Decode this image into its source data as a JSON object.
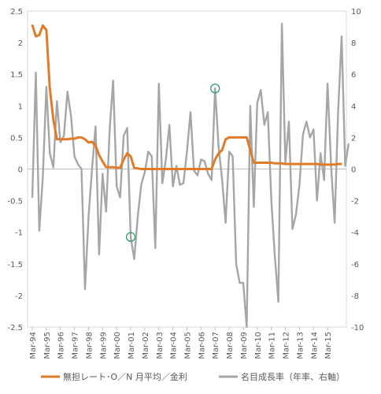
{
  "chart_data": {
    "type": "line",
    "title": "",
    "xlabel": "",
    "ylabel_left": "",
    "ylabel_right": "",
    "legend_position": "bottom",
    "grid": false,
    "y_left": {
      "min": -2.5,
      "max": 2.5,
      "step": 0.5,
      "tick_labels": [
        "2.5",
        "2",
        "1.5",
        "1",
        "0.5",
        "0",
        "-0.5",
        "-1",
        "-1.5",
        "-2",
        "-2.5"
      ]
    },
    "y_right": {
      "min": -10,
      "max": 10,
      "step": 2,
      "tick_labels": [
        "10",
        "8",
        "6",
        "4",
        "2",
        "0",
        "-2",
        "-4",
        "-6",
        "-8",
        "-10"
      ]
    },
    "x_tick_labels": [
      "Mar-94",
      "Mar-95",
      "Mar-96",
      "Mar-97",
      "Mar-98",
      "Mar-99",
      "Mar-00",
      "Mar-01",
      "Mar-02",
      "Mar-03",
      "Mar-04",
      "Mar-05",
      "Mar-06",
      "Mar-07",
      "Mar-08",
      "Mar-09",
      "Mar-10",
      "Mar-11",
      "Mar-12",
      "Mar-13",
      "Mar-14",
      "Mar-15"
    ],
    "quarters_per_year": 4,
    "series": [
      {
        "name": "無担レート･O／N 月平均／金利",
        "axis": "left",
        "color": "#E07B28",
        "values": [
          2.28,
          2.1,
          2.12,
          2.27,
          2.2,
          1.27,
          0.78,
          0.47,
          0.47,
          0.47,
          0.47,
          0.48,
          0.48,
          0.5,
          0.5,
          0.47,
          0.42,
          0.43,
          0.37,
          0.22,
          0.12,
          0.03,
          0.03,
          0.03,
          0.02,
          0.02,
          0.15,
          0.25,
          0.2,
          0.02,
          0.01,
          0.0,
          0.0,
          0.0,
          0.0,
          0.0,
          0.0,
          0.0,
          0.0,
          0.0,
          0.0,
          0.0,
          0.0,
          0.0,
          0.0,
          0.0,
          0.0,
          0.0,
          0.0,
          0.0,
          0.0,
          0.0,
          0.15,
          0.25,
          0.3,
          0.47,
          0.5,
          0.5,
          0.5,
          0.5,
          0.5,
          0.5,
          0.3,
          0.1,
          0.1,
          0.1,
          0.1,
          0.1,
          0.1,
          0.09,
          0.09,
          0.09,
          0.08,
          0.08,
          0.08,
          0.08,
          0.08,
          0.08,
          0.08,
          0.08,
          0.08,
          0.08,
          0.07,
          0.07,
          0.07,
          0.07,
          0.07,
          0.08,
          0.08
        ]
      },
      {
        "name": "名目成長率（年率、右軸）",
        "axis": "right",
        "color": "#A6A6A6",
        "values": [
          -1.8,
          6.1,
          -3.9,
          -0.5,
          5.2,
          1.0,
          0.1,
          4.3,
          1.7,
          2.1,
          4.9,
          3.4,
          0.8,
          0.3,
          0.0,
          -7.6,
          -3.0,
          0.0,
          2.7,
          -5.4,
          -0.3,
          -2.7,
          2.5,
          5.6,
          -1.1,
          -1.8,
          2.1,
          2.6,
          -4.3,
          -5.7,
          -3.0,
          -1.0,
          -0.2,
          1.1,
          0.8,
          -5.0,
          5.4,
          -0.9,
          0.6,
          2.8,
          -1.1,
          0.2,
          -1.0,
          -0.9,
          1.1,
          3.6,
          -0.1,
          -0.4,
          0.6,
          0.5,
          -0.3,
          -0.7,
          5.1,
          1.4,
          -0.7,
          -3.4,
          1.1,
          0.8,
          -6.0,
          -7.2,
          -7.2,
          -10.0,
          4.0,
          -2.4,
          4.2,
          5.0,
          2.8,
          3.6,
          -2.0,
          -5.5,
          -8.4,
          9.2,
          0.4,
          3.0,
          -3.8,
          -2.9,
          -1.0,
          2.2,
          3.0,
          2.0,
          2.5,
          -2.0,
          1.0,
          -0.7,
          5.4,
          0.2,
          -3.4,
          3.6,
          8.4,
          0.2,
          1.6
        ]
      }
    ]
  },
  "legend": {
    "series0_label": "無担レート･O／N 月平均／金利",
    "series1_label": "名目成長率（年率、右軸）"
  }
}
